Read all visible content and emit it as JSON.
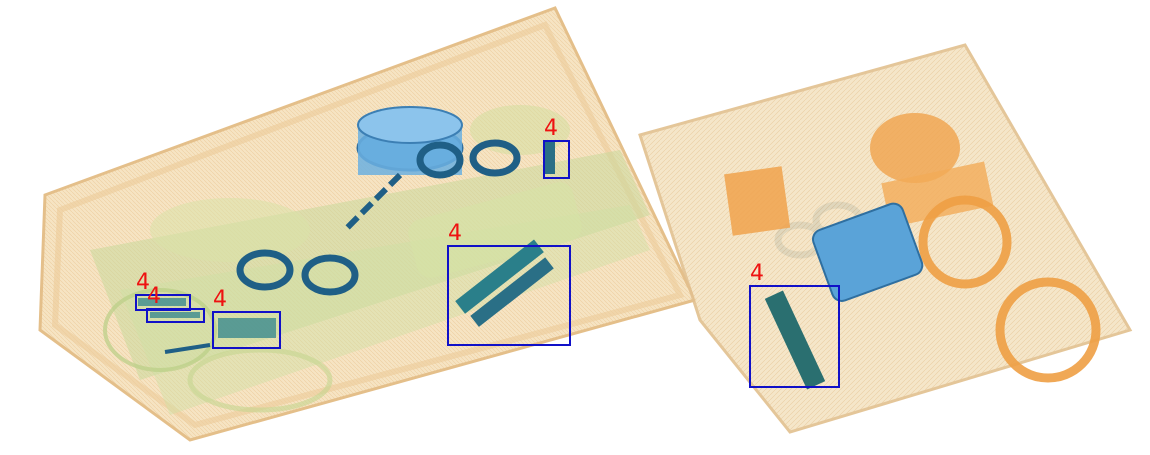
{
  "image": {
    "kind": "x-ray baggage scan",
    "label_color": "#ee1111",
    "box_color": "#1010c8",
    "palette": {
      "organic_light": "#f3ddb4",
      "organic_green": "#c9d99a",
      "metal_blue": "#2f6f99",
      "plastic_blue": "#5aa3d8",
      "orange": "#f0a24c"
    }
  },
  "detections": [
    {
      "label": "4"
    },
    {
      "label": "4"
    },
    {
      "label": "4"
    },
    {
      "label": "4"
    },
    {
      "label": "4"
    },
    {
      "label": "4"
    }
  ]
}
